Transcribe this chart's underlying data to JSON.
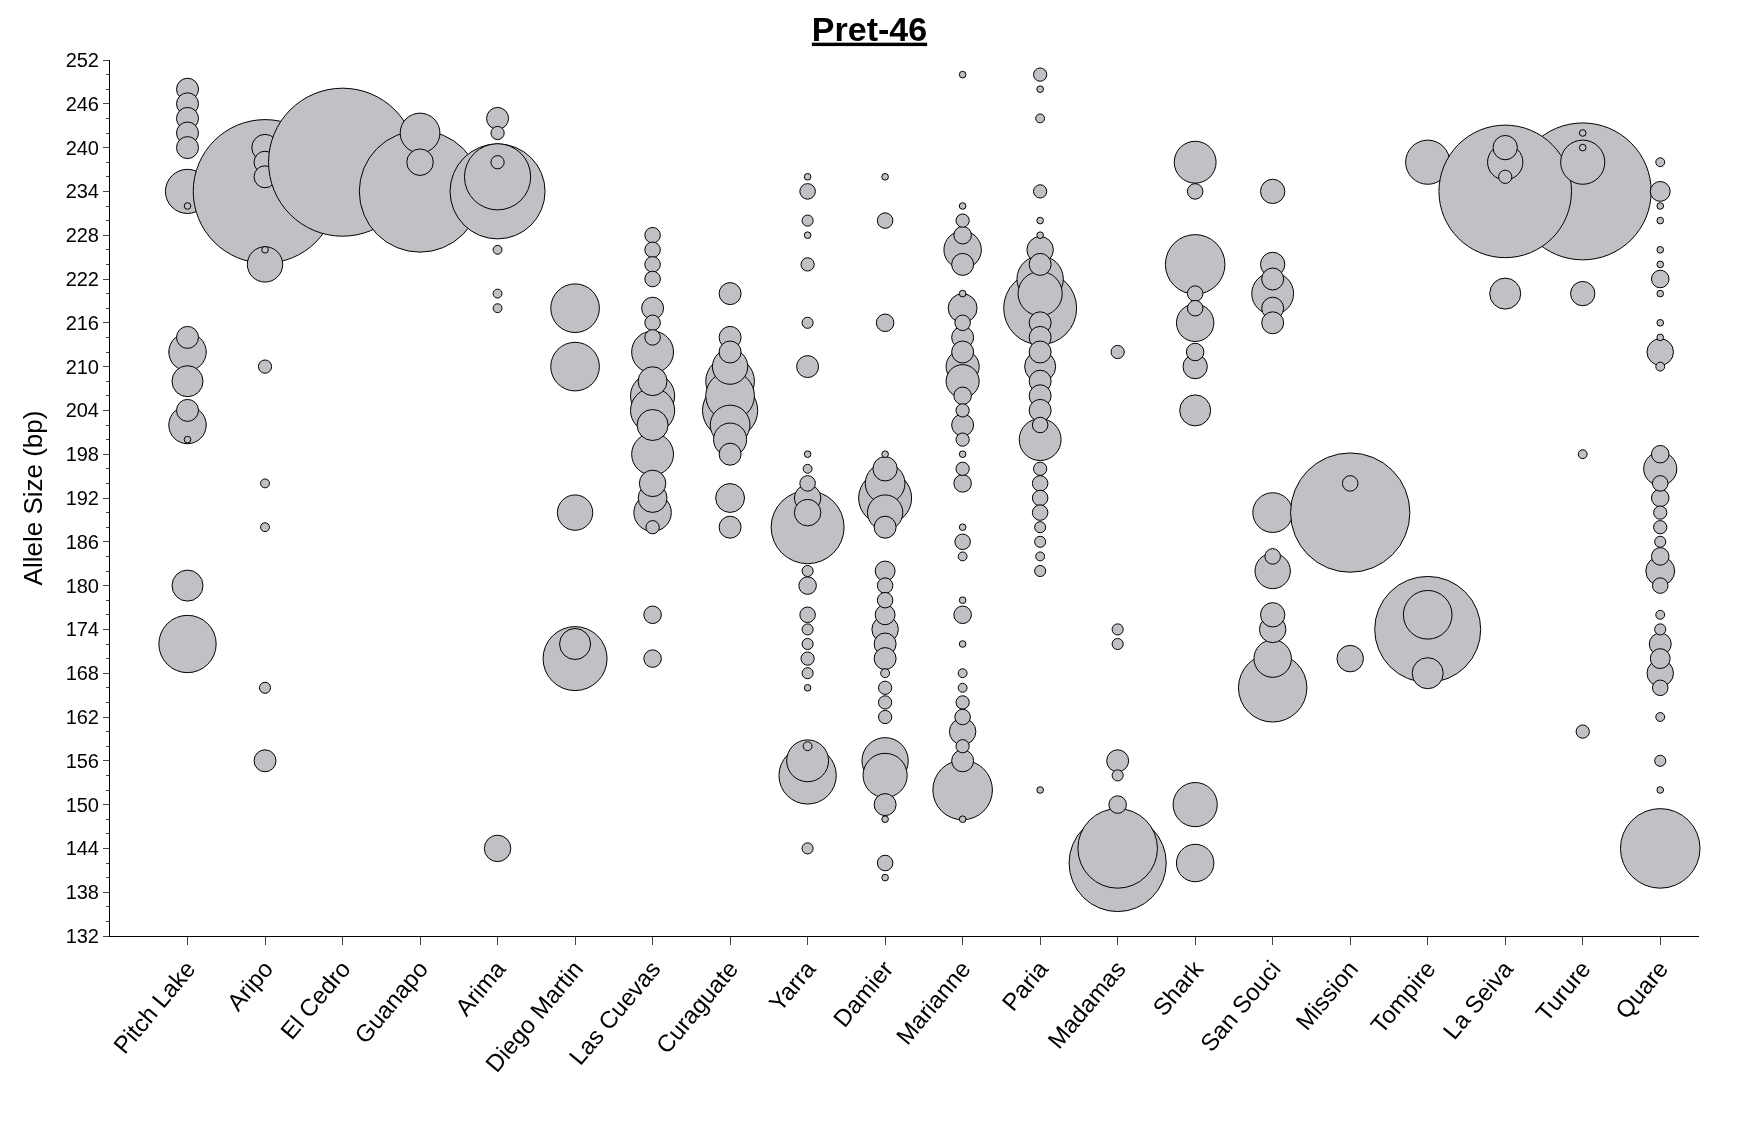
{
  "chart_data": {
    "type": "bubble",
    "title": "Pret-46",
    "ylabel": "Allele Size (bp)",
    "categories": [
      "Pitch Lake",
      "Aripo",
      "El Cedro",
      "Guanapo",
      "Arima",
      "Diego Martin",
      "Las Cuevas",
      "Curaguate",
      "Yarra",
      "Damier",
      "Marianne",
      "Paria",
      "Madamas",
      "Shark",
      "San Souci",
      "Mission",
      "Tompire",
      "La Seiva",
      "Turure",
      "Quare"
    ],
    "ylim": [
      132,
      252
    ],
    "yticks": [
      132,
      138,
      144,
      150,
      156,
      162,
      168,
      174,
      180,
      186,
      192,
      198,
      204,
      210,
      216,
      222,
      228,
      234,
      240,
      246,
      252
    ],
    "series": [
      {
        "color": "#c0c1c4",
        "x": [
          "Pitch Lake",
          "Pitch Lake",
          "Pitch Lake",
          "Pitch Lake",
          "Pitch Lake",
          "Pitch Lake",
          "Pitch Lake",
          "Pitch Lake",
          "Pitch Lake",
          "Pitch Lake",
          "Pitch Lake",
          "Pitch Lake",
          "Pitch Lake",
          "Pitch Lake",
          "Pitch Lake"
        ],
        "values": [
          248,
          246,
          244,
          242,
          240,
          234,
          232,
          214,
          212,
          208,
          204,
          202,
          200,
          180,
          172
        ],
        "sizes": [
          0.022,
          0.022,
          0.022,
          0.022,
          0.022,
          0.089,
          0.002,
          0.022,
          0.064,
          0.044,
          0.022,
          0.064,
          0.002,
          0.044,
          0.15
        ]
      },
      {
        "color": "#c0c1c4",
        "x": [
          "Aripo",
          "Aripo",
          "Aripo",
          "Aripo",
          "Aripo",
          "Aripo",
          "Aripo",
          "Aripo",
          "Aripo",
          "Aripo",
          "Aripo"
        ],
        "values": [
          240,
          238,
          236,
          234,
          226,
          224,
          210,
          194,
          188,
          166,
          156
        ],
        "sizes": [
          0.032,
          0.022,
          0.022,
          0.941,
          0.002,
          0.057,
          0.008,
          0.0036,
          0.0036,
          0.0056,
          0.022
        ]
      },
      {
        "color": "#c0c1c4",
        "x": [
          "El Cedro",
          "Guanapo",
          "Guanapo",
          "Guanapo"
        ],
        "values": [
          238,
          242,
          238,
          234
        ],
        "sizes": [
          1,
          0.072,
          0.032,
          0.674
        ]
      },
      {
        "color": "#c0c1c4",
        "x": [
          "Arima",
          "Arima",
          "Arima",
          "Arima",
          "Arima",
          "Arima",
          "Arima",
          "Arima",
          "Arima"
        ],
        "values": [
          244,
          242,
          238,
          236,
          234,
          226,
          220,
          218,
          144
        ],
        "sizes": [
          0.022,
          0.008,
          0.008,
          0.2,
          0.412,
          0.0036,
          0.0036,
          0.0036,
          0.032
        ]
      },
      {
        "color": "#c0c1c4",
        "x": [
          "Diego Martin",
          "Diego Martin",
          "Diego Martin",
          "Diego Martin",
          "Diego Martin"
        ],
        "values": [
          218,
          210,
          190,
          172,
          170
        ],
        "sizes": [
          0.108,
          0.108,
          0.057,
          0.044,
          0.187
        ]
      },
      {
        "color": "#c0c1c4",
        "x": [
          "Las Cuevas",
          "Las Cuevas",
          "Las Cuevas",
          "Las Cuevas",
          "Las Cuevas",
          "Las Cuevas",
          "Las Cuevas",
          "Las Cuevas",
          "Las Cuevas",
          "Las Cuevas",
          "Las Cuevas",
          "Las Cuevas",
          "Las Cuevas",
          "Las Cuevas",
          "Las Cuevas",
          "Las Cuevas",
          "Las Cuevas",
          "Las Cuevas",
          "Las Cuevas"
        ],
        "values": [
          228,
          226,
          224,
          222,
          218,
          216,
          214,
          212,
          208,
          206,
          204,
          202,
          198,
          194,
          192,
          190,
          188,
          176,
          170
        ],
        "sizes": [
          0.011,
          0.011,
          0.011,
          0.011,
          0.022,
          0.011,
          0.011,
          0.08,
          0.038,
          0.089,
          0.089,
          0.044,
          0.08,
          0.032,
          0.038,
          0.064,
          0.008,
          0.014,
          0.014
        ]
      },
      {
        "color": "#c0c1c4",
        "x": [
          "Curaguate",
          "Curaguate",
          "Curaguate",
          "Curaguate",
          "Curaguate",
          "Curaguate",
          "Curaguate",
          "Curaguate",
          "Curaguate",
          "Curaguate",
          "Curaguate",
          "Curaguate"
        ],
        "values": [
          220,
          214,
          212,
          210,
          208,
          206,
          204,
          202,
          200,
          198,
          192,
          188
        ],
        "sizes": [
          0.022,
          0.022,
          0.022,
          0.057,
          0.108,
          0.108,
          0.139,
          0.072,
          0.05,
          0.022,
          0.038,
          0.022
        ]
      },
      {
        "color": "#c0c1c4",
        "x": [
          "Yarra",
          "Yarra",
          "Yarra",
          "Yarra",
          "Yarra",
          "Yarra",
          "Yarra",
          "Yarra",
          "Yarra",
          "Yarra",
          "Yarra",
          "Yarra",
          "Yarra",
          "Yarra",
          "Yarra",
          "Yarra",
          "Yarra",
          "Yarra",
          "Yarra",
          "Yarra",
          "Yarra",
          "Yarra",
          "Yarra",
          "Yarra",
          "Yarra"
        ],
        "values": [
          236,
          234,
          230,
          228,
          224,
          216,
          210,
          198,
          196,
          194,
          192,
          190,
          188,
          182,
          180,
          176,
          174,
          172,
          170,
          168,
          166,
          158,
          156,
          154,
          144
        ],
        "sizes": [
          0.002,
          0.011,
          0.0056,
          0.002,
          0.008,
          0.0056,
          0.022,
          0.002,
          0.0036,
          0.011,
          0.032,
          0.032,
          0.243,
          0.0056,
          0.014,
          0.011,
          0.0056,
          0.0056,
          0.008,
          0.0056,
          0.002,
          0.0036,
          0.08,
          0.15,
          0.0056
        ]
      },
      {
        "color": "#c0c1c4",
        "x": [
          "Damier",
          "Damier",
          "Damier",
          "Damier",
          "Damier",
          "Damier",
          "Damier",
          "Damier",
          "Damier",
          "Damier",
          "Damier",
          "Damier",
          "Damier",
          "Damier",
          "Damier",
          "Damier",
          "Damier",
          "Damier",
          "Damier",
          "Damier",
          "Damier",
          "Damier",
          "Damier",
          "Damier",
          "Damier",
          "Damier"
        ],
        "values": [
          236,
          230,
          216,
          198,
          196,
          194,
          192,
          190,
          188,
          182,
          180,
          178,
          176,
          174,
          172,
          170,
          168,
          166,
          164,
          162,
          156,
          154,
          150,
          148,
          142,
          140
        ],
        "sizes": [
          0.002,
          0.011,
          0.014,
          0.002,
          0.027,
          0.072,
          0.128,
          0.057,
          0.022,
          0.018,
          0.011,
          0.011,
          0.018,
          0.032,
          0.022,
          0.022,
          0.0036,
          0.008,
          0.008,
          0.008,
          0.098,
          0.089,
          0.022,
          0.002,
          0.011,
          0.002
        ]
      },
      {
        "color": "#c0c1c4",
        "x": [
          "Marianne",
          "Marianne",
          "Marianne",
          "Marianne",
          "Marianne",
          "Marianne",
          "Marianne",
          "Marianne",
          "Marianne",
          "Marianne",
          "Marianne",
          "Marianne",
          "Marianne",
          "Marianne",
          "Marianne",
          "Marianne",
          "Marianne",
          "Marianne",
          "Marianne",
          "Marianne",
          "Marianne",
          "Marianne",
          "Marianne",
          "Marianne",
          "Marianne",
          "Marianne",
          "Marianne",
          "Marianne",
          "Marianne",
          "Marianne",
          "Marianne",
          "Marianne",
          "Marianne",
          "Marianne",
          "Marianne"
        ],
        "values": [
          250,
          232,
          230,
          228,
          226,
          224,
          220,
          218,
          216,
          214,
          212,
          210,
          208,
          206,
          204,
          202,
          200,
          198,
          196,
          194,
          188,
          186,
          184,
          178,
          176,
          172,
          168,
          166,
          164,
          162,
          160,
          158,
          156,
          152,
          148
        ],
        "sizes": [
          0.002,
          0.002,
          0.008,
          0.014,
          0.064,
          0.022,
          0.002,
          0.038,
          0.011,
          0.022,
          0.022,
          0.05,
          0.05,
          0.014,
          0.008,
          0.022,
          0.008,
          0.002,
          0.008,
          0.014,
          0.002,
          0.011,
          0.0036,
          0.002,
          0.014,
          0.002,
          0.0036,
          0.0036,
          0.008,
          0.011,
          0.032,
          0.008,
          0.022,
          0.162,
          0.002
        ]
      },
      {
        "color": "#c0c1c4",
        "x": [
          "Paria",
          "Paria",
          "Paria",
          "Paria",
          "Paria",
          "Paria",
          "Paria",
          "Paria",
          "Paria",
          "Paria",
          "Paria",
          "Paria",
          "Paria",
          "Paria",
          "Paria",
          "Paria",
          "Paria",
          "Paria",
          "Paria",
          "Paria",
          "Paria",
          "Paria",
          "Paria",
          "Paria",
          "Paria",
          "Paria",
          "Paria",
          "Paria",
          "Paria"
        ],
        "values": [
          250,
          248,
          244,
          234,
          230,
          228,
          226,
          224,
          222,
          220,
          218,
          216,
          214,
          212,
          210,
          208,
          206,
          204,
          202,
          200,
          196,
          194,
          192,
          190,
          188,
          186,
          184,
          182,
          152
        ],
        "sizes": [
          0.008,
          0.002,
          0.0036,
          0.008,
          0.002,
          0.002,
          0.032,
          0.022,
          0.098,
          0.089,
          0.243,
          0.022,
          0.022,
          0.022,
          0.044,
          0.022,
          0.022,
          0.022,
          0.011,
          0.08,
          0.008,
          0.011,
          0.011,
          0.011,
          0.0056,
          0.0056,
          0.0036,
          0.0056,
          0.002
        ]
      },
      {
        "color": "#c0c1c4",
        "x": [
          "Madamas",
          "Madamas",
          "Madamas",
          "Madamas",
          "Madamas",
          "Madamas",
          "Madamas",
          "Madamas"
        ],
        "values": [
          212,
          174,
          172,
          156,
          154,
          150,
          144,
          142
        ],
        "sizes": [
          0.008,
          0.0056,
          0.0056,
          0.022,
          0.0056,
          0.014,
          0.289,
          0.431
        ]
      },
      {
        "color": "#c0c1c4",
        "x": [
          "Shark",
          "Shark",
          "Shark",
          "Shark",
          "Shark",
          "Shark",
          "Shark",
          "Shark",
          "Shark",
          "Shark",
          "Shark"
        ],
        "values": [
          238,
          234,
          224,
          220,
          218,
          216,
          212,
          210,
          204,
          150,
          142
        ],
        "sizes": [
          0.08,
          0.011,
          0.162,
          0.011,
          0.011,
          0.064,
          0.014,
          0.027,
          0.044,
          0.089,
          0.064
        ]
      },
      {
        "color": "#c0c1c4",
        "x": [
          "San Souci",
          "San Souci",
          "San Souci",
          "San Souci",
          "San Souci",
          "San Souci",
          "San Souci",
          "San Souci",
          "San Souci",
          "San Souci",
          "San Souci",
          "San Souci",
          "San Souci"
        ],
        "values": [
          234,
          224,
          222,
          220,
          218,
          216,
          190,
          184,
          182,
          176,
          174,
          170,
          166
        ],
        "sizes": [
          0.027,
          0.027,
          0.022,
          0.08,
          0.022,
          0.022,
          0.072,
          0.011,
          0.057,
          0.027,
          0.032,
          0.064,
          0.214
        ]
      },
      {
        "color": "#c0c1c4",
        "x": [
          "Mission",
          "Mission",
          "Mission",
          "Tompire",
          "Tompire",
          "Tompire",
          "Tompire"
        ],
        "values": [
          194,
          190,
          170,
          238,
          176,
          174,
          168
        ],
        "sizes": [
          0.011,
          0.65,
          0.032,
          0.089,
          0.108,
          0.513,
          0.044
        ]
      },
      {
        "color": "#c0c1c4",
        "x": [
          "La Seiva",
          "La Seiva",
          "La Seiva",
          "La Seiva",
          "La Seiva",
          "Turure",
          "Turure",
          "Turure",
          "Turure",
          "Turure",
          "Turure",
          "Turure"
        ],
        "values": [
          240,
          238,
          236,
          234,
          220,
          242,
          240,
          238,
          234,
          220,
          198,
          160
        ],
        "sizes": [
          0.027,
          0.057,
          0.008,
          0.802,
          0.044,
          0.002,
          0.002,
          0.089,
          0.856,
          0.027,
          0.0036,
          0.008
        ]
      },
      {
        "color": "#c0c1c4",
        "x": [
          "Quare",
          "Quare",
          "Quare",
          "Quare",
          "Quare",
          "Quare",
          "Quare",
          "Quare",
          "Quare",
          "Quare",
          "Quare",
          "Quare",
          "Quare",
          "Quare",
          "Quare",
          "Quare",
          "Quare",
          "Quare",
          "Quare",
          "Quare",
          "Quare",
          "Quare",
          "Quare",
          "Quare",
          "Quare",
          "Quare",
          "Quare",
          "Quare",
          "Quare",
          "Quare",
          "Quare",
          "Quare"
        ],
        "values": [
          238,
          234,
          232,
          230,
          226,
          224,
          222,
          220,
          216,
          214,
          212,
          210,
          198,
          196,
          194,
          192,
          190,
          188,
          186,
          184,
          182,
          180,
          176,
          174,
          172,
          170,
          168,
          166,
          162,
          156,
          152,
          144
        ],
        "sizes": [
          0.0036,
          0.018,
          0.002,
          0.002,
          0.002,
          0.002,
          0.014,
          0.002,
          0.002,
          0.002,
          0.032,
          0.0036,
          0.014,
          0.05,
          0.011,
          0.014,
          0.008,
          0.008,
          0.0056,
          0.014,
          0.038,
          0.011,
          0.0036,
          0.0056,
          0.022,
          0.018,
          0.032,
          0.011,
          0.0036,
          0.0056,
          0.002,
          0.289
        ]
      }
    ]
  }
}
